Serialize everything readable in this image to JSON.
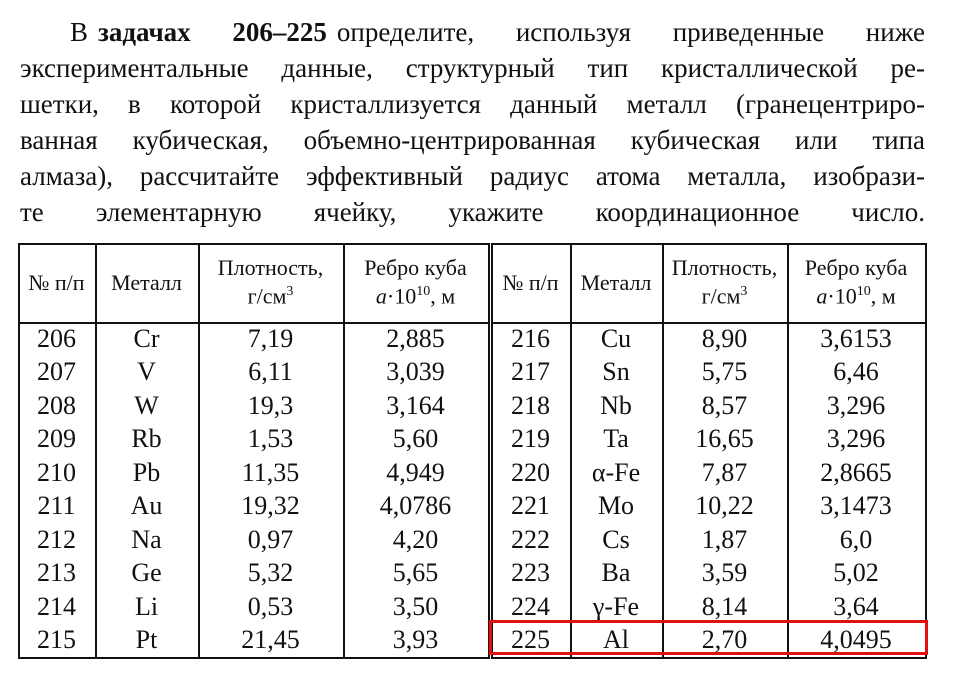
{
  "intro": {
    "lead": "В",
    "bold": "задачах 206–225",
    "lines": [
      "определите, используя приведенные ниже",
      "экспериментальные данные, структурный тип кристаллической ре-",
      "шетки, в которой кристаллизуется данный металл (гранецентриро-",
      "ванная кубическая, объемно-центрированная кубическая или типа",
      "алмаза), рассчитайте эффективный радиус атома металла, изобрази-",
      "те элементарную ячейку, укажите координационное число."
    ]
  },
  "table": {
    "headers": {
      "no": "№ п/п",
      "metal": "Металл",
      "density": {
        "line1": "Плотность,",
        "unit": "г/см",
        "sup": "3"
      },
      "edge": {
        "line1": "Ребро куба",
        "var": "a",
        "mult": "·10",
        "sup": "10",
        "unit": ", м"
      }
    },
    "rows": [
      [
        "206",
        "Cr",
        "7,19",
        "2,885"
      ],
      [
        "207",
        "V",
        "6,11",
        "3,039"
      ],
      [
        "208",
        "W",
        "19,3",
        "3,164"
      ],
      [
        "209",
        "Rb",
        "1,53",
        "5,60"
      ],
      [
        "210",
        "Pb",
        "11,35",
        "4,949"
      ],
      [
        "211",
        "Au",
        "19,32",
        "4,0786"
      ],
      [
        "212",
        "Na",
        "0,97",
        "4,20"
      ],
      [
        "213",
        "Ge",
        "5,32",
        "5,65"
      ],
      [
        "214",
        "Li",
        "0,53",
        "3,50"
      ],
      [
        "215",
        "Pt",
        "21,45",
        "3,93"
      ],
      [
        "216",
        "Cu",
        "8,90",
        "3,6153"
      ],
      [
        "217",
        "Sn",
        "5,75",
        "6,46"
      ],
      [
        "218",
        "Nb",
        "8,57",
        "3,296"
      ],
      [
        "219",
        "Ta",
        "16,65",
        "3,296"
      ],
      [
        "220",
        "α-Fe",
        "7,87",
        "2,8665"
      ],
      [
        "221",
        "Mo",
        "10,22",
        "3,1473"
      ],
      [
        "222",
        "Cs",
        "1,87",
        "6,0"
      ],
      [
        "223",
        "Ba",
        "3,59",
        "5,02"
      ],
      [
        "224",
        "γ-Fe",
        "8,14",
        "3,64"
      ],
      [
        "225",
        "Al",
        "2,70",
        "4,0495"
      ]
    ]
  }
}
